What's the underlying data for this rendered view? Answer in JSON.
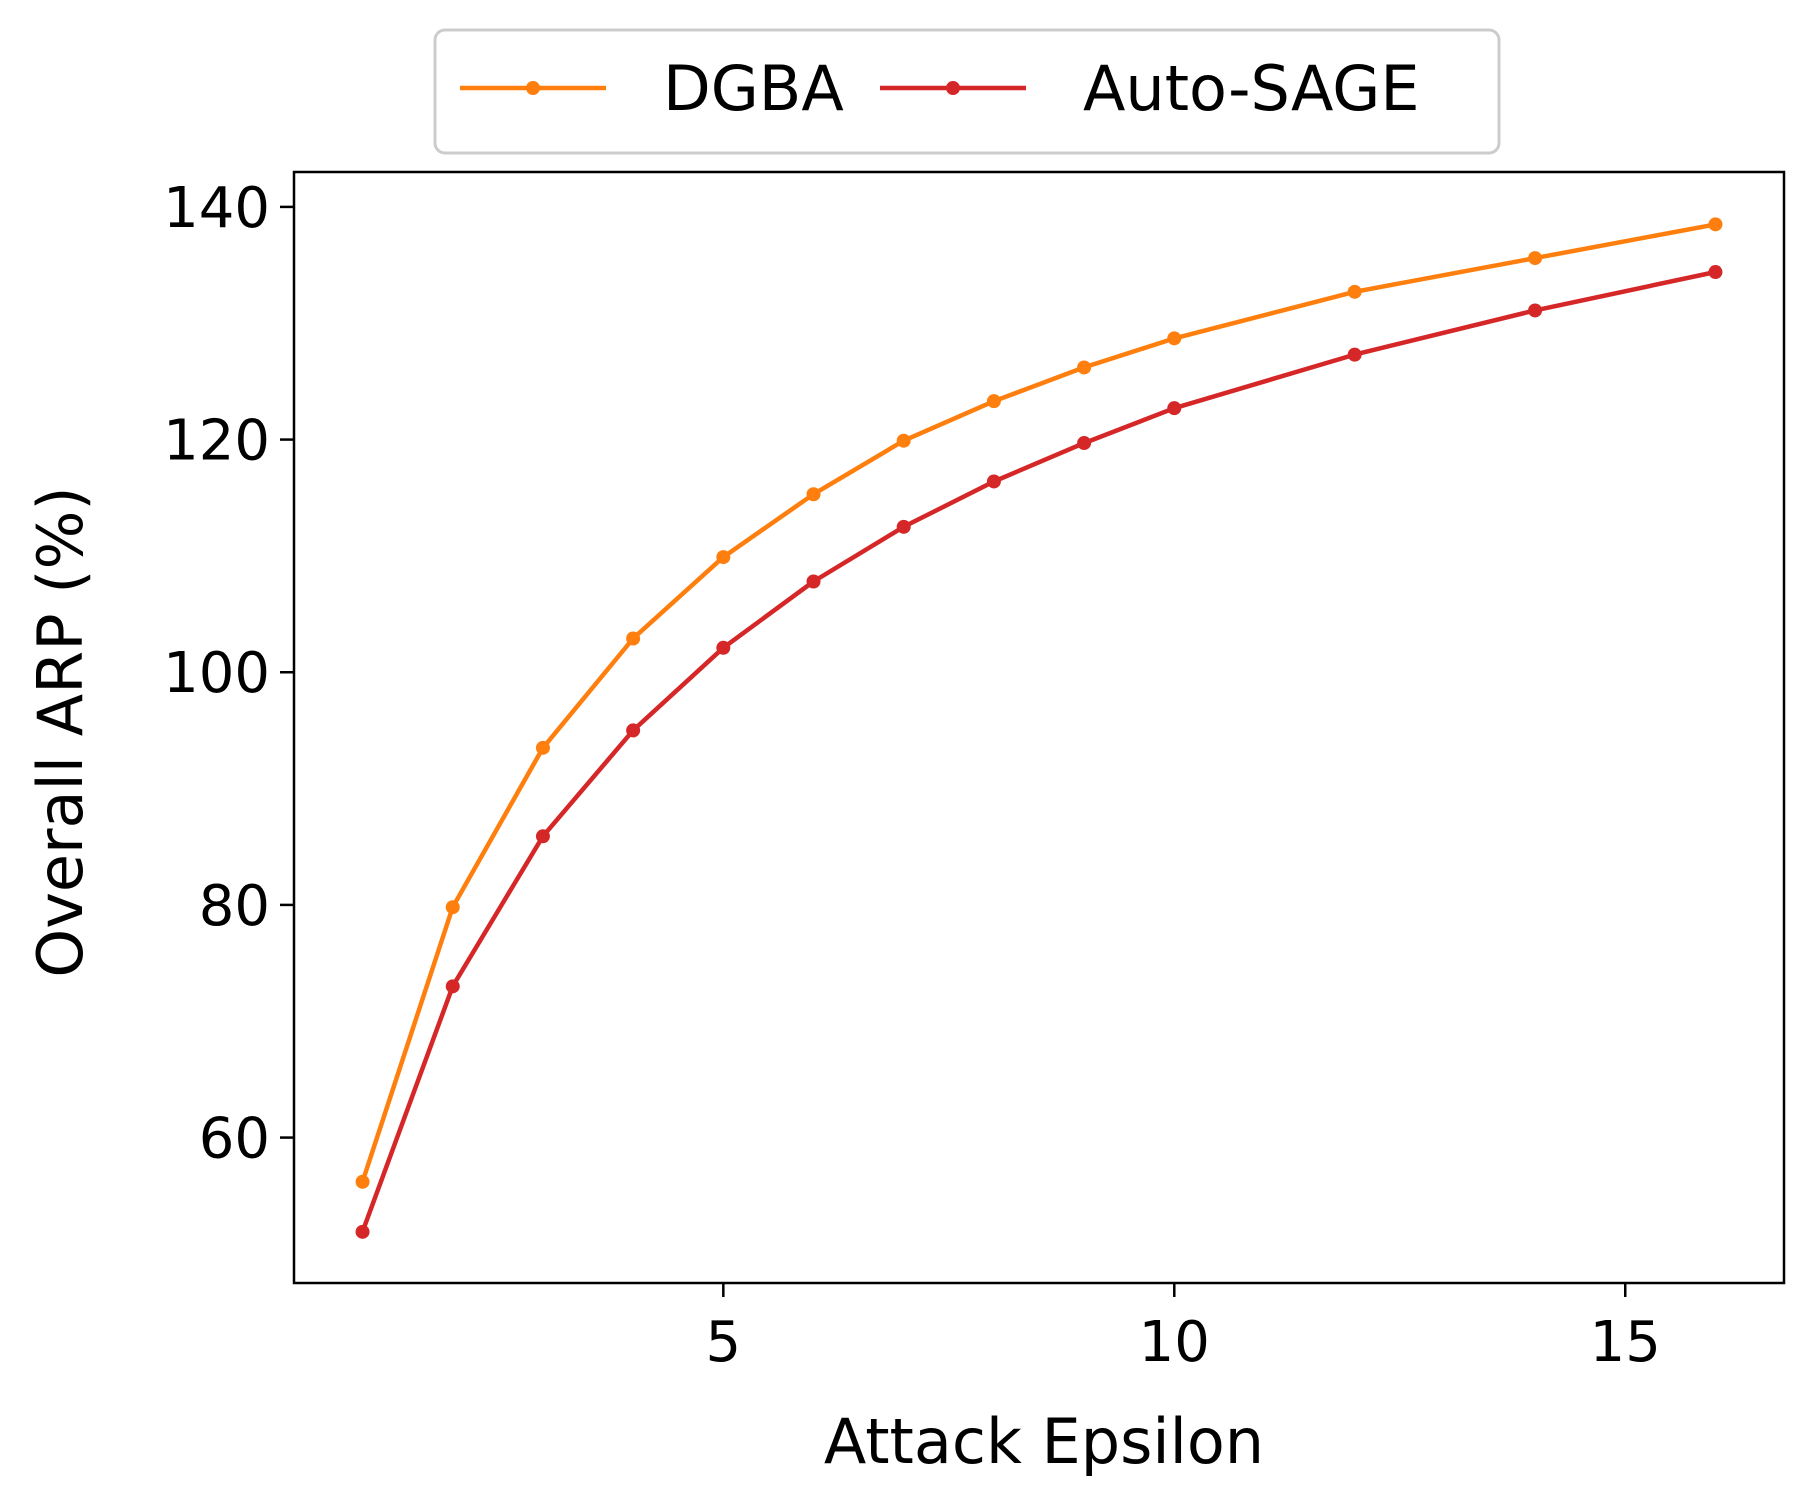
{
  "chart_data": {
    "type": "line",
    "title": "",
    "xlabel": "Attack Epsilon",
    "ylabel": "Overall ARP (%)",
    "xlim": [
      0.24,
      16.76
    ],
    "ylim": [
      47.5,
      143
    ],
    "xticks": [
      5,
      10,
      15
    ],
    "yticks": [
      60,
      80,
      100,
      120,
      140
    ],
    "grid": false,
    "legend": {
      "position": "top-center",
      "entries": [
        "DGBA",
        "Auto-SAGE"
      ]
    },
    "series": [
      {
        "name": "DGBA",
        "color": "#ff7f0e",
        "marker": "circle",
        "x": [
          1,
          2,
          3,
          4,
          5,
          6,
          7,
          8,
          9,
          10,
          12,
          14,
          16
        ],
        "y": [
          56.2,
          79.8,
          93.5,
          102.9,
          109.9,
          115.3,
          119.9,
          123.3,
          126.2,
          128.7,
          132.7,
          135.6,
          138.5
        ]
      },
      {
        "name": "Auto-SAGE",
        "color": "#d62728",
        "marker": "circle",
        "x": [
          1,
          2,
          3,
          4,
          5,
          6,
          7,
          8,
          9,
          10,
          12,
          14,
          16
        ],
        "y": [
          51.9,
          73.0,
          85.9,
          95.0,
          102.1,
          107.8,
          112.5,
          116.4,
          119.7,
          122.7,
          127.3,
          131.1,
          134.4
        ]
      }
    ]
  }
}
